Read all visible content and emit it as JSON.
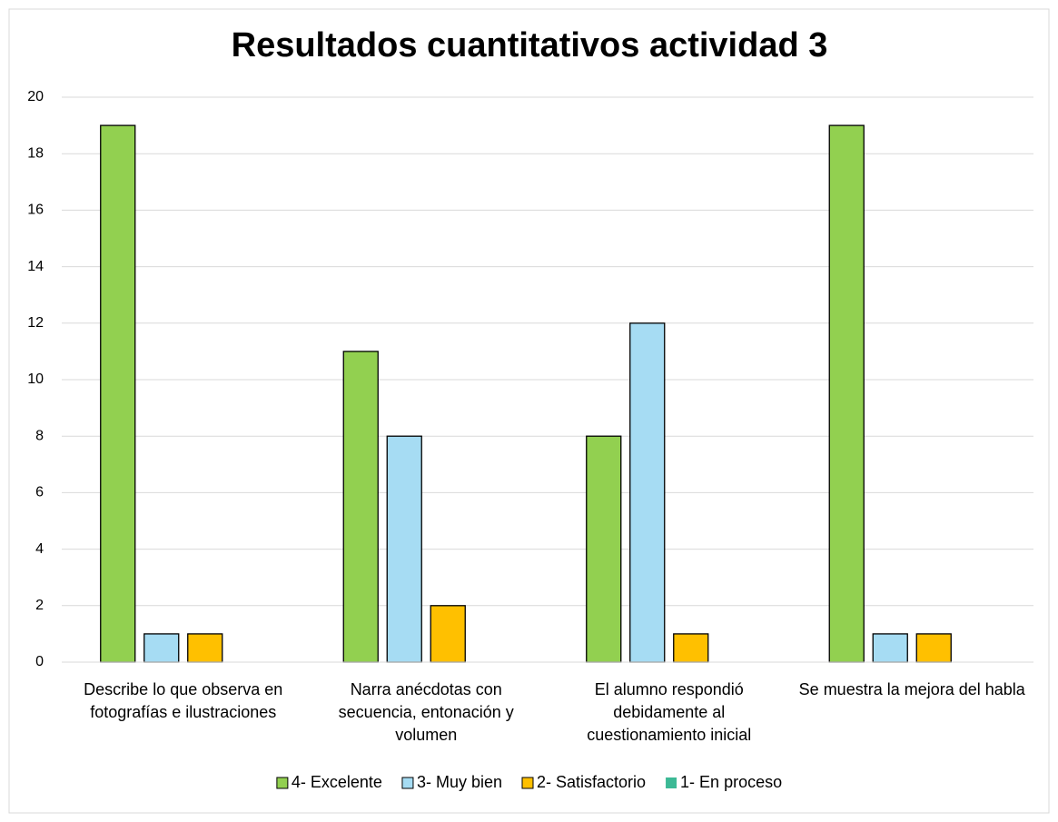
{
  "chart_data": {
    "type": "bar",
    "title": "Resultados cuantitativos actividad 3",
    "categories": [
      "Describe lo que observa en fotografías e ilustraciones",
      "Narra anécdotas con secuencia, entonación y volumen",
      "El alumno respondió debidamente al cuestionamiento inicial",
      "Se muestra la mejora del habla"
    ],
    "series": [
      {
        "name": "4- Excelente",
        "color": "#92d050",
        "values": [
          19,
          11,
          8,
          19
        ]
      },
      {
        "name": "3- Muy bien",
        "color": "#a6dcf3",
        "values": [
          1,
          8,
          12,
          1
        ]
      },
      {
        "name": "2- Satisfactorio",
        "color": "#ffc000",
        "values": [
          1,
          2,
          1,
          1
        ]
      },
      {
        "name": "1- En proceso",
        "color": "#3cb995",
        "values": [
          0,
          0,
          0,
          0
        ]
      }
    ],
    "ylim": [
      0,
      20
    ],
    "yticks": [
      0,
      2,
      4,
      6,
      8,
      10,
      12,
      14,
      16,
      18,
      20
    ],
    "grid": true,
    "legend": "bottom"
  }
}
